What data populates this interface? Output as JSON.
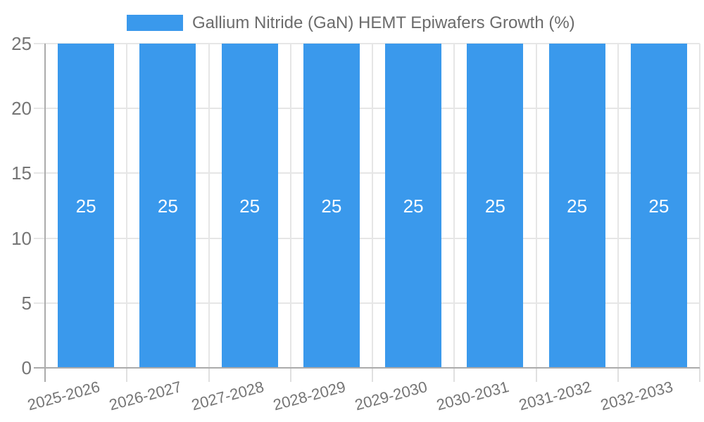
{
  "legend": {
    "label": "Gallium Nitride (GaN) HEMT Epiwafers Growth (%)"
  },
  "chart_data": {
    "type": "bar",
    "title": "Gallium Nitride (GaN) HEMT Epiwafers Growth (%)",
    "categories": [
      "2025-2026",
      "2026-2027",
      "2027-2028",
      "2028-2029",
      "2029-2030",
      "2030-2031",
      "2031-2032",
      "2032-2033"
    ],
    "values": [
      25,
      25,
      25,
      25,
      25,
      25,
      25,
      25
    ],
    "bar_value_labels": [
      "25",
      "25",
      "25",
      "25",
      "25",
      "25",
      "25",
      "25"
    ],
    "xlabel": "",
    "ylabel": "",
    "ylim": [
      0,
      25
    ],
    "yticks": [
      0,
      5,
      10,
      15,
      20,
      25
    ],
    "grid": true,
    "legend_position": "top",
    "colors": {
      "bar": "#3a99ec",
      "bar_label": "#ffffff",
      "grid": "#e6e6e6",
      "tick_mark": "#e0e0e0",
      "axis": "#ababab",
      "tick_text": "#757575",
      "legend_text": "#6b6b6b"
    }
  }
}
